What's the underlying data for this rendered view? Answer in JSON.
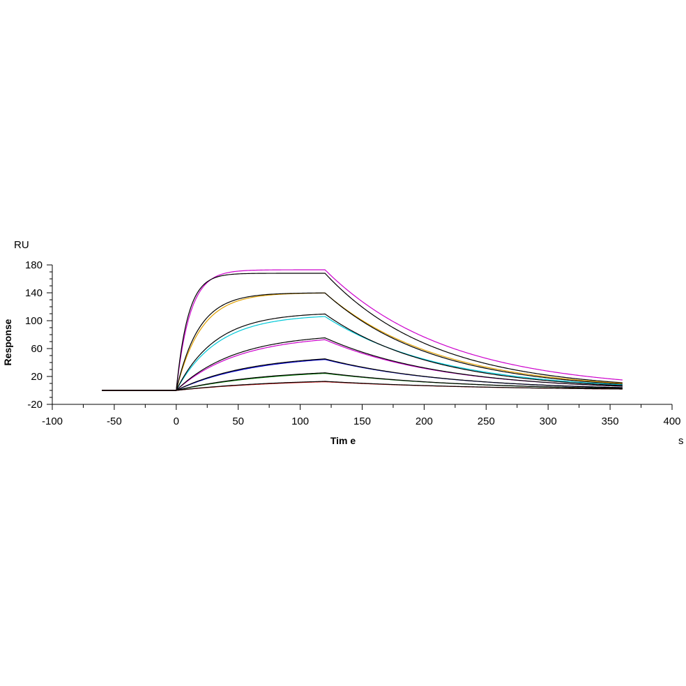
{
  "chart_data": {
    "type": "line",
    "y_unit": "RU",
    "x_unit": "s",
    "xlabel": "Tim e",
    "ylabel": "Response",
    "xlim": [
      -100,
      400
    ],
    "ylim": [
      -20,
      180
    ],
    "x_ticks": [
      -100,
      -50,
      0,
      50,
      100,
      150,
      200,
      250,
      300,
      350,
      400
    ],
    "y_ticks": [
      -20,
      20,
      60,
      100,
      140,
      180
    ],
    "grid": false,
    "legend": "none",
    "association_start": 0,
    "dissociation_start": 120,
    "end_time": 360,
    "baseline_start": -60,
    "series": [
      {
        "color": "#cc00cc",
        "kind": "measured",
        "plateau": 173,
        "kon_rate": 0.09,
        "end_value": 15
      },
      {
        "color": "#000000",
        "kind": "fit",
        "plateau": 168,
        "kon_rate": 0.105,
        "end_value": 11
      },
      {
        "color": "#e0a000",
        "kind": "measured",
        "plateau": 140,
        "kon_rate": 0.05,
        "end_value": 10
      },
      {
        "color": "#000000",
        "kind": "fit",
        "plateau": 140,
        "kon_rate": 0.055,
        "end_value": 9
      },
      {
        "color": "#00c8d8",
        "kind": "measured",
        "plateau": 109,
        "kon_rate": 0.03,
        "end_value": 8
      },
      {
        "color": "#000000",
        "kind": "fit",
        "plateau": 112,
        "kon_rate": 0.032,
        "end_value": 7
      },
      {
        "color": "#cc00cc",
        "kind": "measured",
        "plateau": 80,
        "kon_rate": 0.02,
        "end_value": 6
      },
      {
        "color": "#000000",
        "kind": "fit",
        "plateau": 82,
        "kon_rate": 0.021,
        "end_value": 6
      },
      {
        "color": "#0000cc",
        "kind": "measured",
        "plateau": 52,
        "kon_rate": 0.016,
        "end_value": 4
      },
      {
        "color": "#000000",
        "kind": "fit",
        "plateau": 52,
        "kon_rate": 0.017,
        "end_value": 4
      },
      {
        "color": "#008000",
        "kind": "measured",
        "plateau": 31,
        "kon_rate": 0.013,
        "end_value": 3
      },
      {
        "color": "#000000",
        "kind": "fit",
        "plateau": 31,
        "kon_rate": 0.014,
        "end_value": 3
      },
      {
        "color": "#e00000",
        "kind": "measured",
        "plateau": 17,
        "kon_rate": 0.011,
        "end_value": 2
      },
      {
        "color": "#000000",
        "kind": "fit",
        "plateau": 17,
        "kon_rate": 0.012,
        "end_value": 2
      }
    ]
  }
}
